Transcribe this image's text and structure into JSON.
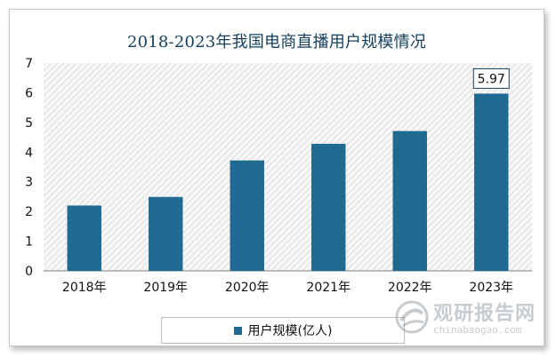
{
  "chart_data": {
    "type": "bar",
    "title": "2018-2023年我国电商直播用户规模情况",
    "categories": [
      "2018年",
      "2019年",
      "2020年",
      "2021年",
      "2022年",
      "2023年"
    ],
    "series": [
      {
        "name": "用户规模(亿人)",
        "values": [
          2.2,
          2.49,
          3.72,
          4.28,
          4.71,
          5.97
        ]
      }
    ],
    "annotation": {
      "category": "2023年",
      "text": "5.97"
    },
    "ylim": [
      0,
      7
    ],
    "yticks": [
      "0",
      "1",
      "2",
      "3",
      "4",
      "5",
      "6",
      "7"
    ],
    "xlabel": "",
    "ylabel": "",
    "legend": "bottom",
    "grid": false,
    "colors": {
      "bar": "#1e6a90",
      "title": "#14405e",
      "plot_hatch": "#dcdcdc"
    }
  },
  "watermark": {
    "logo_text": "观研报告网",
    "url": "chinabaogao.com"
  }
}
